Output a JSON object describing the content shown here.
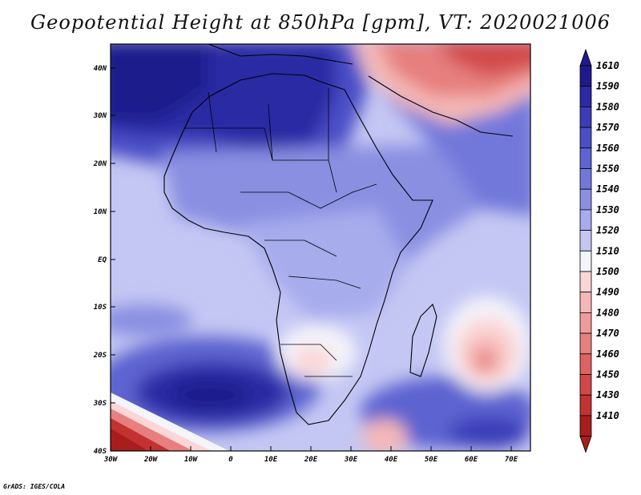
{
  "title": "Geopotential Height at 850hPa [gpm], VT: 2020021006",
  "credit": "GrADS: IGES/COLA",
  "lat_labels": [
    "40N",
    "30N",
    "20N",
    "10N",
    "EQ",
    "10S",
    "20S",
    "30S",
    "40S"
  ],
  "lon_labels": [
    "30W",
    "20W",
    "10W",
    "0",
    "10E",
    "20E",
    "30E",
    "40E",
    "50E",
    "60E",
    "70E"
  ],
  "colorbar": {
    "levels": [
      "1610",
      "1590",
      "1580",
      "1570",
      "1560",
      "1550",
      "1540",
      "1530",
      "1520",
      "1510",
      "1500",
      "1490",
      "1480",
      "1470",
      "1460",
      "1450",
      "1430",
      "1410"
    ],
    "colors": [
      "#1e1a8c",
      "#2c2aa4",
      "#3b3cb8",
      "#4b4fc6",
      "#5d63d0",
      "#7278da",
      "#8a8fe2",
      "#a7aced",
      "#c4c7f3",
      "#f4f4fb",
      "#fbd6d6",
      "#f5b8b6",
      "#ee9c9a",
      "#e67f7e",
      "#dd6262",
      "#d24848",
      "#c33131",
      "#a81d1d"
    ]
  }
}
